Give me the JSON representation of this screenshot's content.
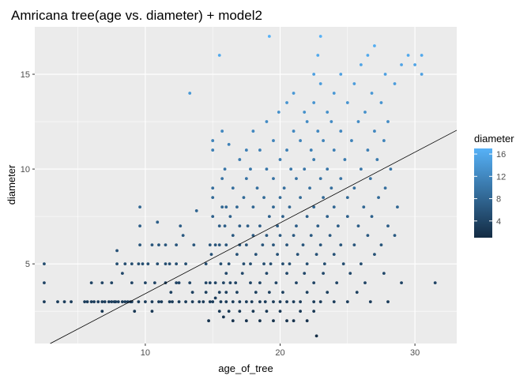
{
  "chart_data": {
    "type": "scatter",
    "title": "Amricana tree(age vs. diameter) + model2",
    "xlabel": "age_of_tree",
    "ylabel": "diameter",
    "xlim": [
      1.8,
      33.1
    ],
    "ylim": [
      0.8,
      17.5
    ],
    "x_ticks": [
      10,
      20,
      30
    ],
    "x_tick_labels": [
      "10",
      "20",
      "30"
    ],
    "y_ticks": [
      5,
      10,
      15
    ],
    "y_tick_labels": [
      "5",
      "10",
      "15"
    ],
    "grid": true,
    "legend": {
      "title": "diameter",
      "position": "right",
      "ticks": [
        4,
        8,
        12,
        16
      ],
      "tick_labels": [
        "4",
        "8",
        "12",
        "16"
      ],
      "range": [
        1,
        17
      ],
      "color_low": "#132B43",
      "color_high": "#56B1F7"
    },
    "fit_line": {
      "slope": 0.373,
      "intercept": -0.3,
      "color": "#000000"
    },
    "colors": {
      "panel_bg": "#EBEBEB",
      "grid": "#FFFFFF"
    },
    "points": [
      [
        2.5,
        5
      ],
      [
        2.5,
        4
      ],
      [
        2.5,
        3
      ],
      [
        3.5,
        3
      ],
      [
        4,
        3
      ],
      [
        4.5,
        3
      ],
      [
        5.5,
        3
      ],
      [
        5.7,
        3
      ],
      [
        6,
        3
      ],
      [
        6,
        4
      ],
      [
        6.2,
        3
      ],
      [
        6.5,
        3
      ],
      [
        6.8,
        3
      ],
      [
        6.8,
        2.5
      ],
      [
        6.8,
        4
      ],
      [
        7,
        3
      ],
      [
        7.3,
        3
      ],
      [
        7.5,
        3
      ],
      [
        7.5,
        4
      ],
      [
        7.7,
        3
      ],
      [
        7.8,
        3
      ],
      [
        7.9,
        5
      ],
      [
        7.9,
        5.7
      ],
      [
        8,
        3
      ],
      [
        8.3,
        3
      ],
      [
        8.3,
        4.5
      ],
      [
        8.5,
        3
      ],
      [
        8.5,
        5
      ],
      [
        8.7,
        3
      ],
      [
        8.9,
        3
      ],
      [
        9,
        3
      ],
      [
        9,
        4
      ],
      [
        9,
        5
      ],
      [
        9.2,
        2.5
      ],
      [
        9.5,
        3
      ],
      [
        9.5,
        5
      ],
      [
        9.6,
        6
      ],
      [
        9.6,
        7
      ],
      [
        9.6,
        8
      ],
      [
        9.8,
        5
      ],
      [
        10,
        3
      ],
      [
        10,
        4
      ],
      [
        10.2,
        5
      ],
      [
        10.5,
        3
      ],
      [
        10.5,
        2.5
      ],
      [
        10.5,
        6
      ],
      [
        10.7,
        4
      ],
      [
        10.9,
        5
      ],
      [
        10.9,
        7.2
      ],
      [
        11,
        3
      ],
      [
        11,
        6
      ],
      [
        11.2,
        3
      ],
      [
        11.5,
        5
      ],
      [
        11.5,
        4
      ],
      [
        11.5,
        6
      ],
      [
        11.8,
        5
      ],
      [
        11.8,
        3
      ],
      [
        11.9,
        3.5
      ],
      [
        12,
        3
      ],
      [
        12.3,
        4
      ],
      [
        12.3,
        5
      ],
      [
        12.3,
        6
      ],
      [
        12.5,
        3
      ],
      [
        12.5,
        4
      ],
      [
        12.6,
        7
      ],
      [
        12.8,
        6.5
      ],
      [
        13,
        3
      ],
      [
        13,
        5
      ],
      [
        13.3,
        4
      ],
      [
        13.3,
        14
      ],
      [
        13.5,
        3
      ],
      [
        13.5,
        3.5
      ],
      [
        13.6,
        6
      ],
      [
        13.8,
        7.8
      ],
      [
        14,
        3
      ],
      [
        14.3,
        3
      ],
      [
        14.5,
        4
      ],
      [
        14.5,
        5
      ],
      [
        14.5,
        3.5
      ],
      [
        14.7,
        2
      ],
      [
        14.8,
        3
      ],
      [
        14.8,
        4
      ],
      [
        14.8,
        6
      ],
      [
        14.9,
        5.5
      ],
      [
        15,
        11.5
      ],
      [
        15,
        11
      ],
      [
        15,
        9
      ],
      [
        15,
        8.5
      ],
      [
        15,
        7.5
      ],
      [
        15,
        3
      ],
      [
        15.2,
        3.2
      ],
      [
        15.2,
        6
      ],
      [
        15.2,
        4
      ],
      [
        15.5,
        3.5
      ],
      [
        15.5,
        2.5
      ],
      [
        15.5,
        6
      ],
      [
        15.5,
        7
      ],
      [
        15.5,
        16
      ],
      [
        15.6,
        3
      ],
      [
        15.6,
        5
      ],
      [
        15.7,
        8
      ],
      [
        15.7,
        9.5
      ],
      [
        15.7,
        12
      ],
      [
        15.8,
        4
      ],
      [
        15.8,
        2.2
      ],
      [
        15.9,
        7
      ],
      [
        15.9,
        10
      ],
      [
        16,
        3
      ],
      [
        16,
        4.5
      ],
      [
        16,
        3.5
      ],
      [
        16,
        6
      ],
      [
        16,
        8
      ],
      [
        16.2,
        5
      ],
      [
        16.2,
        2.5
      ],
      [
        16.2,
        11.3
      ],
      [
        16.3,
        4
      ],
      [
        16.3,
        7.5
      ],
      [
        16.5,
        3
      ],
      [
        16.5,
        6.5
      ],
      [
        16.5,
        9
      ],
      [
        16.5,
        2
      ],
      [
        16.7,
        4
      ],
      [
        16.8,
        5.5
      ],
      [
        16.8,
        8
      ],
      [
        16.8,
        3.5
      ],
      [
        17,
        3
      ],
      [
        17,
        6
      ],
      [
        17,
        7
      ],
      [
        17,
        10.5
      ],
      [
        17,
        2.5
      ],
      [
        17.2,
        4.5
      ],
      [
        17.3,
        5
      ],
      [
        17.3,
        8.5
      ],
      [
        17.5,
        3
      ],
      [
        17.5,
        6
      ],
      [
        17.5,
        9.5
      ],
      [
        17.5,
        11
      ],
      [
        17.5,
        2
      ],
      [
        17.6,
        7
      ],
      [
        17.8,
        4
      ],
      [
        17.8,
        5
      ],
      [
        17.8,
        10
      ],
      [
        17.9,
        3
      ],
      [
        18,
        6.5
      ],
      [
        18,
        8
      ],
      [
        18,
        2.5
      ],
      [
        18,
        12
      ],
      [
        18.2,
        3.5
      ],
      [
        18.2,
        5.5
      ],
      [
        18.3,
        9
      ],
      [
        18.5,
        3
      ],
      [
        18.5,
        4
      ],
      [
        18.5,
        7
      ],
      [
        18.5,
        11
      ],
      [
        18.5,
        2
      ],
      [
        18.7,
        6
      ],
      [
        18.8,
        5
      ],
      [
        18.8,
        8.5
      ],
      [
        18.9,
        3
      ],
      [
        19,
        4.5
      ],
      [
        19,
        6.5
      ],
      [
        19,
        10
      ],
      [
        19,
        12.5
      ],
      [
        19,
        2.5
      ],
      [
        19.2,
        3.5
      ],
      [
        19.2,
        7.5
      ],
      [
        19.2,
        17
      ],
      [
        19.3,
        5
      ],
      [
        19.5,
        3
      ],
      [
        19.5,
        6
      ],
      [
        19.5,
        8
      ],
      [
        19.5,
        9.5
      ],
      [
        19.5,
        11.5
      ],
      [
        19.5,
        2
      ],
      [
        19.7,
        4
      ],
      [
        19.8,
        5.5
      ],
      [
        19.8,
        7
      ],
      [
        19.9,
        13
      ],
      [
        20,
        3
      ],
      [
        20,
        6.5
      ],
      [
        20,
        8.5
      ],
      [
        20,
        10.5
      ],
      [
        20,
        2.5
      ],
      [
        20.2,
        3.5
      ],
      [
        20.2,
        5
      ],
      [
        20.2,
        7.5
      ],
      [
        20.3,
        9
      ],
      [
        20.5,
        3
      ],
      [
        20.5,
        4.5
      ],
      [
        20.5,
        6
      ],
      [
        20.5,
        11
      ],
      [
        20.5,
        13.5
      ],
      [
        20.5,
        2
      ],
      [
        20.7,
        5
      ],
      [
        20.7,
        8
      ],
      [
        20.8,
        10
      ],
      [
        21,
        3
      ],
      [
        21,
        6.5
      ],
      [
        21,
        12
      ],
      [
        21,
        14
      ],
      [
        21,
        2
      ],
      [
        21.2,
        4
      ],
      [
        21.2,
        7
      ],
      [
        21.2,
        9.5
      ],
      [
        21.3,
        5.5
      ],
      [
        21.5,
        3
      ],
      [
        21.5,
        8.5
      ],
      [
        21.5,
        11.5
      ],
      [
        21.5,
        2.5
      ],
      [
        21.7,
        6
      ],
      [
        21.8,
        4.5
      ],
      [
        21.8,
        10
      ],
      [
        21.8,
        13
      ],
      [
        22,
        3.5
      ],
      [
        22,
        5
      ],
      [
        22,
        7.5
      ],
      [
        22,
        12.5
      ],
      [
        22,
        2
      ],
      [
        22.2,
        9
      ],
      [
        22.3,
        6.5
      ],
      [
        22.3,
        11
      ],
      [
        22.5,
        3
      ],
      [
        22.5,
        4
      ],
      [
        22.5,
        8
      ],
      [
        22.5,
        10.5
      ],
      [
        22.5,
        13.5
      ],
      [
        22.5,
        15
      ],
      [
        22.5,
        2.5
      ],
      [
        22.7,
        5.5
      ],
      [
        22.7,
        1.2
      ],
      [
        22.8,
        7
      ],
      [
        22.8,
        12
      ],
      [
        22.8,
        16
      ],
      [
        23,
        3
      ],
      [
        23,
        6
      ],
      [
        23,
        9.5
      ],
      [
        23,
        14.5
      ],
      [
        23,
        17
      ],
      [
        23.2,
        4.5
      ],
      [
        23.2,
        8.5
      ],
      [
        23.2,
        11.5
      ],
      [
        23.3,
        5
      ],
      [
        23.5,
        3.5
      ],
      [
        23.5,
        7.5
      ],
      [
        23.5,
        10
      ],
      [
        23.5,
        13
      ],
      [
        23.7,
        6.5
      ],
      [
        23.8,
        9
      ],
      [
        23.8,
        12.5
      ],
      [
        24,
        3
      ],
      [
        24,
        5.5
      ],
      [
        24,
        8
      ],
      [
        24,
        11
      ],
      [
        24,
        14
      ],
      [
        24.2,
        4
      ],
      [
        24.3,
        7
      ],
      [
        24.5,
        6
      ],
      [
        24.5,
        9.5
      ],
      [
        24.5,
        12
      ],
      [
        24.5,
        15
      ],
      [
        24.7,
        5
      ],
      [
        24.8,
        10.5
      ],
      [
        25,
        3
      ],
      [
        25,
        7.5
      ],
      [
        25,
        8.5
      ],
      [
        25,
        13.5
      ],
      [
        25.2,
        4.5
      ],
      [
        25.3,
        11.5
      ],
      [
        25.5,
        6
      ],
      [
        25.5,
        9
      ],
      [
        25.5,
        14.5
      ],
      [
        25.7,
        3.5
      ],
      [
        25.8,
        7
      ],
      [
        25.8,
        12.5
      ],
      [
        26,
        5
      ],
      [
        26,
        10
      ],
      [
        26,
        15.5
      ],
      [
        26.2,
        8
      ],
      [
        26.3,
        4
      ],
      [
        26.3,
        13
      ],
      [
        26.5,
        6.5
      ],
      [
        26.5,
        11
      ],
      [
        26.5,
        16
      ],
      [
        26.7,
        9.5
      ],
      [
        26.7,
        3
      ],
      [
        26.8,
        7.5
      ],
      [
        26.8,
        14
      ],
      [
        27,
        5.5
      ],
      [
        27,
        12
      ],
      [
        27,
        16.5
      ],
      [
        27.2,
        10.5
      ],
      [
        27.3,
        8.5
      ],
      [
        27.5,
        6
      ],
      [
        27.5,
        13.5
      ],
      [
        27.7,
        4.5
      ],
      [
        27.7,
        11.5
      ],
      [
        27.8,
        9
      ],
      [
        27.8,
        15
      ],
      [
        28,
        7
      ],
      [
        28,
        12.5
      ],
      [
        28,
        3
      ],
      [
        28.2,
        10
      ],
      [
        28.5,
        6.5
      ],
      [
        28.5,
        14.5
      ],
      [
        28.7,
        8
      ],
      [
        29,
        4
      ],
      [
        29,
        15.5
      ],
      [
        29.5,
        16
      ],
      [
        30,
        15.5
      ],
      [
        30.5,
        16
      ],
      [
        30.5,
        15
      ],
      [
        31.5,
        4
      ]
    ]
  }
}
